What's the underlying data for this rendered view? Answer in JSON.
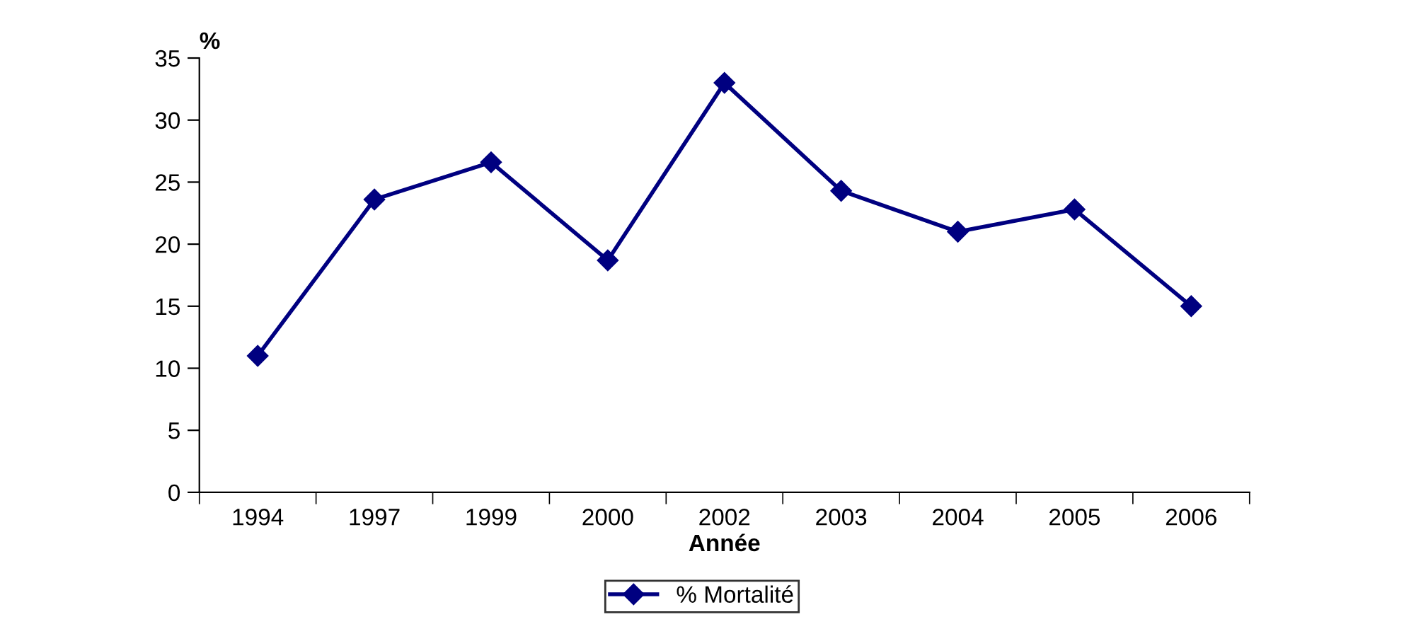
{
  "chart_data": {
    "type": "line",
    "xlabel": "Année",
    "ylabel": "%",
    "categories": [
      "1994",
      "1997",
      "1999",
      "2000",
      "2002",
      "2003",
      "2004",
      "2005",
      "2006"
    ],
    "series": [
      {
        "name": "% Mortalité",
        "color": "#000080",
        "values": [
          11,
          23.6,
          26.6,
          18.7,
          33,
          24.3,
          21,
          22.8,
          15
        ]
      }
    ],
    "ylim": [
      0,
      35
    ],
    "yticks": [
      0,
      5,
      10,
      15,
      20,
      25,
      30,
      35
    ],
    "grid": false,
    "legend": "bottom",
    "marker": "diamond",
    "line_style": "solid"
  }
}
